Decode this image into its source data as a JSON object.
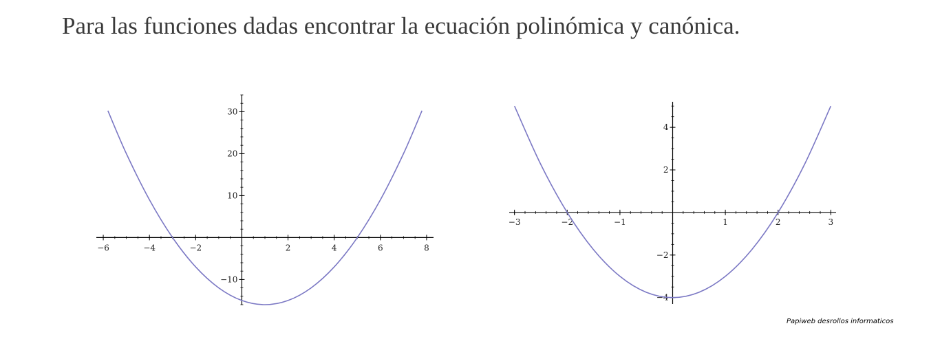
{
  "title": "Para las funciones dadas encontrar la ecuación polinómica y canónica.",
  "credit": "Papiweb desrollos informaticos",
  "curve_color": "#7b78c4",
  "chart_data": [
    {
      "type": "line",
      "function": "y = x^2 - 2x - 15",
      "xlim": [
        -6.3,
        8.3
      ],
      "ylim": [
        -16,
        34
      ],
      "x_ticks": [
        -6,
        -4,
        -2,
        2,
        4,
        6,
        8
      ],
      "y_ticks": [
        -10,
        10,
        20,
        30
      ],
      "x_tick_labels": [
        "−6",
        "−4",
        "−2",
        "2",
        "4",
        "6",
        "8"
      ],
      "y_tick_labels": [
        "−10",
        "10",
        "20",
        "30"
      ],
      "series": [
        {
          "x": [
            -5.8,
            -5,
            -4,
            -3,
            -2,
            -1,
            0,
            1,
            2,
            3,
            4,
            5,
            6,
            7,
            7.8
          ],
          "y": [
            30.24,
            20,
            9,
            0,
            -7,
            -12,
            -15,
            -16,
            -15,
            -12,
            -7,
            0,
            9,
            20,
            30.24
          ]
        }
      ]
    },
    {
      "type": "line",
      "function": "y = x^2 - 4",
      "xlim": [
        -3.1,
        3.1
      ],
      "ylim": [
        -4.3,
        5.2
      ],
      "x_ticks": [
        -3,
        -2,
        -1,
        1,
        2,
        3
      ],
      "y_ticks": [
        -4,
        -2,
        2,
        4
      ],
      "x_tick_labels": [
        "−3",
        "−2",
        "−1",
        "1",
        "2",
        "3"
      ],
      "y_tick_labels": [
        "−4",
        "−2",
        "2",
        "4"
      ],
      "series": [
        {
          "x": [
            -3,
            -2.5,
            -2,
            -1.5,
            -1,
            -0.5,
            0,
            0.5,
            1,
            1.5,
            2,
            2.5,
            3
          ],
          "y": [
            5,
            2.25,
            0,
            -1.75,
            -3,
            -3.75,
            -4,
            -3.75,
            -3,
            -1.75,
            0,
            2.25,
            5
          ]
        }
      ]
    }
  ]
}
